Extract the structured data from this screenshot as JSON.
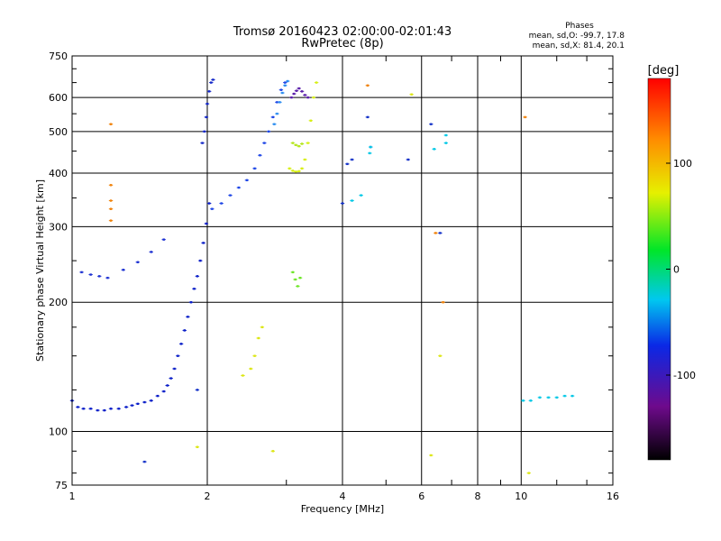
{
  "header": {
    "title_line1": "Tromsø 20160423 02:00:00-02:01:43",
    "title_line2": "RwPretec (8p)"
  },
  "phases": {
    "heading": "Phases",
    "line_o": "mean, sd,O: -99.7, 17.8",
    "line_x": "mean, sd,X:  81.4, 20.1"
  },
  "colorbar": {
    "unit": "[deg]",
    "ticks": [
      "100",
      "0",
      "-100"
    ],
    "range": [
      -180,
      180
    ]
  },
  "chart_data": {
    "type": "scatter",
    "xlabel": "Frequency [MHz]",
    "ylabel": "Stationary phase Virtual Height [km]",
    "x_scale": "log",
    "y_scale": "log",
    "xlim": [
      1,
      16
    ],
    "ylim": [
      75,
      750
    ],
    "xticks": [
      "1",
      "2",
      "4",
      "6",
      "8",
      "10",
      "16"
    ],
    "yticks": [
      "75",
      "100",
      "200",
      "300",
      "400",
      "500",
      "600",
      "750"
    ],
    "grid": true,
    "series": [
      {
        "color": "#0a1ec8",
        "phase_deg": -105,
        "x": [
          1.0,
          1.03,
          1.06,
          1.1,
          1.14,
          1.18,
          1.22,
          1.27,
          1.32,
          1.36,
          1.4,
          1.45,
          1.5,
          1.55,
          1.6,
          1.63,
          1.66,
          1.69,
          1.72,
          1.75,
          1.78,
          1.81,
          1.84,
          1.87,
          1.9,
          1.93,
          1.96,
          1.99,
          2.02
        ],
        "y": [
          118,
          114,
          113,
          113,
          112,
          112,
          113,
          113,
          114,
          115,
          116,
          117,
          118,
          121,
          124,
          128,
          133,
          140,
          150,
          160,
          172,
          185,
          200,
          215,
          230,
          250,
          275,
          305,
          340
        ]
      },
      {
        "color": "#1e46e6",
        "phase_deg": -95,
        "x": [
          2.05,
          2.15,
          2.25,
          2.35,
          2.45,
          2.55,
          2.62,
          2.68,
          2.74,
          2.8,
          2.86,
          2.92,
          2.98
        ],
        "y": [
          330,
          340,
          355,
          370,
          385,
          410,
          440,
          470,
          500,
          540,
          585,
          625,
          650
        ]
      },
      {
        "color": "#2a8cf0",
        "phase_deg": -85,
        "x": [
          2.82,
          2.86,
          2.9,
          2.94,
          2.98,
          3.02
        ],
        "y": [
          520,
          550,
          585,
          615,
          640,
          655
        ]
      },
      {
        "color": "#1428c8",
        "phase_deg": -110,
        "x": [
          1.95,
          1.97,
          1.99,
          2.0,
          2.02,
          2.04,
          2.06
        ],
        "y": [
          470,
          500,
          540,
          580,
          620,
          650,
          660
        ]
      },
      {
        "color": "#5a1eaa",
        "phase_deg": -140,
        "x": [
          3.08,
          3.12,
          3.16,
          3.2,
          3.25,
          3.3,
          3.35
        ],
        "y": [
          600,
          612,
          622,
          630,
          620,
          608,
          600
        ]
      },
      {
        "color": "#d7ef14",
        "phase_deg": 100,
        "x": [
          3.05,
          3.1,
          3.15,
          3.2,
          3.25,
          3.3,
          3.35,
          3.4,
          3.45,
          3.5
        ],
        "y": [
          410,
          405,
          403,
          404,
          410,
          430,
          470,
          530,
          600,
          650
        ]
      },
      {
        "color": "#b4e61e",
        "phase_deg": 80,
        "x": [
          3.1,
          3.15,
          3.2,
          3.25
        ],
        "y": [
          470,
          465,
          462,
          468
        ]
      },
      {
        "color": "#6ee628",
        "phase_deg": 45,
        "x": [
          3.1,
          3.14,
          3.18,
          3.22
        ],
        "y": [
          235,
          226,
          218,
          228
        ]
      },
      {
        "color": "#1e32d2",
        "phase_deg": -105,
        "x": [
          1.05,
          1.1,
          1.15,
          1.2,
          1.3,
          1.4,
          1.5,
          1.6
        ],
        "y": [
          235,
          232,
          230,
          228,
          238,
          248,
          262,
          280
        ]
      },
      {
        "color": "#00c8e6",
        "phase_deg": -30,
        "x": [
          10.1,
          10.5,
          11.0,
          11.5,
          12.0,
          12.5,
          13.0
        ],
        "y": [
          118,
          118,
          120,
          120,
          120,
          121,
          121
        ]
      },
      {
        "color": "#f0820a",
        "phase_deg": 140,
        "x": [
          1.22,
          1.22,
          1.22,
          1.22,
          1.22,
          4.55,
          6.45,
          6.7,
          10.2
        ],
        "y": [
          520,
          375,
          345,
          330,
          310,
          640,
          290,
          200,
          540
        ]
      },
      {
        "color": "#1432c8",
        "phase_deg": -100,
        "x": [
          4.0,
          4.1,
          4.2,
          4.55,
          4.62,
          5.6,
          6.3,
          6.6,
          1.9,
          1.45
        ],
        "y": [
          340,
          420,
          430,
          540,
          460,
          430,
          520,
          290,
          125,
          85
        ]
      },
      {
        "color": "#00c8e6",
        "phase_deg": -20,
        "x": [
          4.2,
          4.4,
          4.6,
          4.62,
          6.4,
          6.8,
          6.8
        ],
        "y": [
          345,
          355,
          445,
          460,
          455,
          470,
          490
        ]
      },
      {
        "color": "#dce614",
        "phase_deg": 90,
        "x": [
          2.4,
          2.5,
          2.55,
          2.6,
          2.65,
          5.7,
          6.3,
          6.6,
          1.9,
          2.8,
          10.4
        ],
        "y": [
          135,
          140,
          150,
          165,
          175,
          610,
          88,
          150,
          92,
          90,
          80
        ]
      }
    ]
  }
}
